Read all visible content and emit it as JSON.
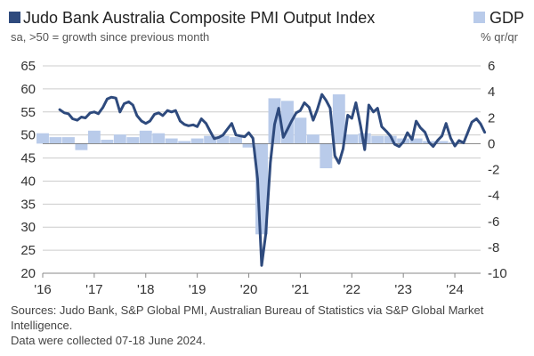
{
  "colors": {
    "pmi": "#2e4a7d",
    "gdp": "#b9cbea",
    "grid": "#cccccc",
    "axis": "#888888"
  },
  "legend": {
    "pmi_title": "Judo Bank Australia Composite PMI Output Index",
    "pmi_subtitle": "sa, >50 = growth since previous month",
    "gdp_title": "GDP",
    "gdp_subtitle": "% qr/qr"
  },
  "footer": {
    "sources": "Sources: Judo Bank, S&P Global PMI, Australian Bureau of Statistics via S&P Global Market Intelligence.",
    "collected": "Data were collected 07-18 June 2024."
  },
  "chart_data": {
    "type": "line+bar",
    "title": "Judo Bank Australia Composite PMI Output Index",
    "left_axis": {
      "label": "sa, >50 = growth since previous month",
      "ylim": [
        20,
        65
      ],
      "ticks": [
        65,
        60,
        55,
        50,
        45,
        40,
        35,
        30,
        25,
        20
      ]
    },
    "right_axis": {
      "label": "% qr/qr",
      "ylim": [
        -10,
        6
      ],
      "ticks": [
        6,
        4,
        2,
        0,
        -2,
        -4,
        -6,
        -8,
        -10
      ]
    },
    "x_ticks": [
      "'16",
      "'17",
      "'18",
      "'19",
      "'20",
      "'21",
      "'22",
      "'23",
      "'24"
    ],
    "x_tick_years": [
      2016,
      2017,
      2018,
      2019,
      2020,
      2021,
      2022,
      2023,
      2024
    ],
    "xlim": [
      2016.0,
      2024.5
    ],
    "grid": true,
    "series": [
      {
        "name": "Judo Bank Australia Composite PMI Output Index",
        "kind": "line",
        "axis": "left",
        "points": [
          [
            2016.33,
            55.5
          ],
          [
            2016.42,
            54.8
          ],
          [
            2016.5,
            54.6
          ],
          [
            2016.58,
            53.5
          ],
          [
            2016.67,
            53.2
          ],
          [
            2016.75,
            53.9
          ],
          [
            2016.83,
            53.7
          ],
          [
            2016.92,
            54.8
          ],
          [
            2017.0,
            55.0
          ],
          [
            2017.08,
            54.6
          ],
          [
            2017.17,
            56.0
          ],
          [
            2017.25,
            57.8
          ],
          [
            2017.33,
            58.2
          ],
          [
            2017.42,
            58.0
          ],
          [
            2017.5,
            55.0
          ],
          [
            2017.58,
            56.8
          ],
          [
            2017.67,
            57.2
          ],
          [
            2017.75,
            56.5
          ],
          [
            2017.83,
            54.2
          ],
          [
            2017.92,
            53.0
          ],
          [
            2018.0,
            52.5
          ],
          [
            2018.08,
            53.0
          ],
          [
            2018.17,
            54.5
          ],
          [
            2018.25,
            54.8
          ],
          [
            2018.33,
            54.2
          ],
          [
            2018.42,
            55.3
          ],
          [
            2018.5,
            55.0
          ],
          [
            2018.58,
            55.3
          ],
          [
            2018.67,
            53.0
          ],
          [
            2018.75,
            52.3
          ],
          [
            2018.83,
            52.0
          ],
          [
            2018.92,
            52.2
          ],
          [
            2019.0,
            51.8
          ],
          [
            2019.08,
            53.5
          ],
          [
            2019.17,
            52.5
          ],
          [
            2019.25,
            50.8
          ],
          [
            2019.33,
            49.2
          ],
          [
            2019.42,
            49.5
          ],
          [
            2019.5,
            50.0
          ],
          [
            2019.58,
            51.2
          ],
          [
            2019.67,
            52.5
          ],
          [
            2019.75,
            50.0
          ],
          [
            2019.83,
            49.8
          ],
          [
            2019.92,
            49.6
          ],
          [
            2020.0,
            50.5
          ],
          [
            2020.08,
            49.3
          ],
          [
            2020.17,
            40.5
          ],
          [
            2020.25,
            21.7
          ],
          [
            2020.33,
            28.5
          ],
          [
            2020.42,
            44.0
          ],
          [
            2020.5,
            52.3
          ],
          [
            2020.58,
            55.8
          ],
          [
            2020.67,
            49.5
          ],
          [
            2020.75,
            51.2
          ],
          [
            2020.83,
            53.0
          ],
          [
            2020.92,
            54.8
          ],
          [
            2021.0,
            55.3
          ],
          [
            2021.08,
            57.0
          ],
          [
            2021.17,
            56.0
          ],
          [
            2021.25,
            53.2
          ],
          [
            2021.33,
            55.5
          ],
          [
            2021.42,
            58.8
          ],
          [
            2021.5,
            57.5
          ],
          [
            2021.58,
            55.8
          ],
          [
            2021.67,
            45.5
          ],
          [
            2021.75,
            43.9
          ],
          [
            2021.83,
            47.0
          ],
          [
            2021.92,
            54.3
          ],
          [
            2022.0,
            53.6
          ],
          [
            2022.08,
            57.0
          ],
          [
            2022.17,
            52.0
          ],
          [
            2022.25,
            46.8
          ],
          [
            2022.33,
            56.5
          ],
          [
            2022.42,
            55.0
          ],
          [
            2022.5,
            55.8
          ],
          [
            2022.58,
            51.8
          ],
          [
            2022.67,
            50.8
          ],
          [
            2022.75,
            49.8
          ],
          [
            2022.83,
            48.0
          ],
          [
            2022.92,
            47.5
          ],
          [
            2023.0,
            48.5
          ],
          [
            2023.08,
            50.5
          ],
          [
            2023.17,
            49.0
          ],
          [
            2023.25,
            53.0
          ],
          [
            2023.33,
            51.6
          ],
          [
            2023.42,
            50.6
          ],
          [
            2023.5,
            48.4
          ],
          [
            2023.58,
            47.5
          ],
          [
            2023.67,
            48.9
          ],
          [
            2023.75,
            49.8
          ],
          [
            2023.83,
            52.5
          ],
          [
            2023.92,
            49.3
          ],
          [
            2024.0,
            47.6
          ],
          [
            2024.08,
            48.8
          ],
          [
            2024.17,
            48.3
          ],
          [
            2024.25,
            50.5
          ],
          [
            2024.33,
            52.8
          ],
          [
            2024.42,
            53.5
          ],
          [
            2024.5,
            52.4
          ],
          [
            2024.58,
            50.6
          ]
        ]
      },
      {
        "name": "GDP",
        "kind": "bar",
        "axis": "right",
        "points": [
          [
            2016.0,
            0.8
          ],
          [
            2016.25,
            0.5
          ],
          [
            2016.5,
            0.5
          ],
          [
            2016.75,
            -0.5
          ],
          [
            2017.0,
            1.0
          ],
          [
            2017.25,
            0.3
          ],
          [
            2017.5,
            0.7
          ],
          [
            2017.75,
            0.5
          ],
          [
            2018.0,
            1.0
          ],
          [
            2018.25,
            0.8
          ],
          [
            2018.5,
            0.4
          ],
          [
            2018.75,
            0.2
          ],
          [
            2019.0,
            0.4
          ],
          [
            2019.25,
            0.6
          ],
          [
            2019.5,
            0.6
          ],
          [
            2019.75,
            0.5
          ],
          [
            2020.0,
            -0.3
          ],
          [
            2020.25,
            -7.0
          ],
          [
            2020.5,
            3.5
          ],
          [
            2020.75,
            3.3
          ],
          [
            2021.0,
            2.0
          ],
          [
            2021.25,
            0.7
          ],
          [
            2021.5,
            -1.9
          ],
          [
            2021.75,
            3.8
          ],
          [
            2022.0,
            0.7
          ],
          [
            2022.25,
            0.8
          ],
          [
            2022.5,
            0.6
          ],
          [
            2022.75,
            0.6
          ],
          [
            2023.0,
            0.4
          ],
          [
            2023.25,
            0.4
          ],
          [
            2023.5,
            0.2
          ],
          [
            2023.75,
            0.2
          ],
          [
            2024.0,
            0.1
          ]
        ]
      }
    ]
  }
}
